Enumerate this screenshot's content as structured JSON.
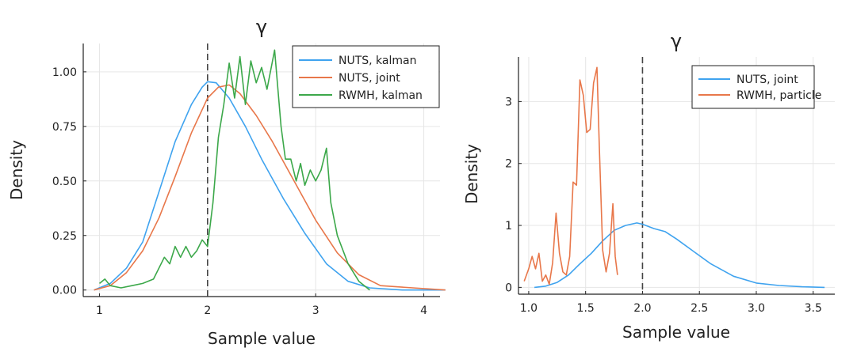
{
  "chart_data": [
    {
      "type": "line",
      "title": "γ",
      "xlabel": "Sample value",
      "ylabel": "Density",
      "xlim": [
        0.85,
        4.15
      ],
      "ylim": [
        -0.03,
        1.13
      ],
      "xticks": [
        "1",
        "2",
        "3",
        "4"
      ],
      "xtick_values": [
        1,
        2,
        3,
        4
      ],
      "yticks": [
        "0.00",
        "0.25",
        "0.50",
        "0.75",
        "1.00"
      ],
      "ytick_values": [
        0,
        0.25,
        0.5,
        0.75,
        1.0
      ],
      "grid": true,
      "legend_position": "top-right",
      "reference_line_x": 2,
      "series": [
        {
          "name": "NUTS, kalman",
          "color": "#3fa3ef",
          "x": [
            0.95,
            1.1,
            1.25,
            1.4,
            1.55,
            1.7,
            1.85,
            1.95,
            2.0,
            2.08,
            2.2,
            2.35,
            2.5,
            2.7,
            2.9,
            3.1,
            3.3,
            3.5,
            3.8,
            4.2
          ],
          "y": [
            0.0,
            0.03,
            0.1,
            0.22,
            0.45,
            0.68,
            0.85,
            0.93,
            0.955,
            0.95,
            0.88,
            0.75,
            0.6,
            0.42,
            0.26,
            0.12,
            0.04,
            0.01,
            0.0,
            0.0
          ]
        },
        {
          "name": "NUTS, joint",
          "color": "#e8774a",
          "x": [
            0.95,
            1.1,
            1.25,
            1.4,
            1.55,
            1.7,
            1.85,
            2.0,
            2.1,
            2.2,
            2.3,
            2.45,
            2.6,
            2.8,
            3.0,
            3.2,
            3.4,
            3.6,
            3.9,
            4.2
          ],
          "y": [
            0.0,
            0.02,
            0.08,
            0.18,
            0.33,
            0.52,
            0.72,
            0.88,
            0.93,
            0.94,
            0.9,
            0.8,
            0.68,
            0.5,
            0.32,
            0.17,
            0.07,
            0.02,
            0.01,
            0.0
          ],
          "_": "x,y"
        },
        {
          "name": "RWMH, kalman",
          "color": "#3ca84a",
          "x": [
            1.0,
            1.05,
            1.1,
            1.2,
            1.3,
            1.4,
            1.5,
            1.6,
            1.65,
            1.7,
            1.75,
            1.8,
            1.85,
            1.9,
            1.95,
            2.0,
            2.05,
            2.1,
            2.15,
            2.2,
            2.25,
            2.3,
            2.35,
            2.4,
            2.45,
            2.5,
            2.55,
            2.62,
            2.68,
            2.72,
            2.77,
            2.82,
            2.86,
            2.9,
            2.95,
            3.0,
            3.05,
            3.1,
            3.14,
            3.2,
            3.3,
            3.4,
            3.5
          ],
          "y": [
            0.03,
            0.05,
            0.02,
            0.01,
            0.02,
            0.03,
            0.05,
            0.15,
            0.12,
            0.2,
            0.15,
            0.2,
            0.15,
            0.18,
            0.23,
            0.2,
            0.4,
            0.7,
            0.85,
            1.04,
            0.88,
            1.07,
            0.85,
            1.05,
            0.95,
            1.02,
            0.92,
            1.1,
            0.75,
            0.6,
            0.6,
            0.5,
            0.58,
            0.48,
            0.55,
            0.5,
            0.55,
            0.65,
            0.4,
            0.25,
            0.12,
            0.04,
            0.0
          ]
        }
      ]
    },
    {
      "type": "line",
      "title": "γ",
      "xlabel": "Sample value",
      "ylabel": "Density",
      "xlim": [
        0.91,
        3.69
      ],
      "ylim": [
        -0.11,
        3.72
      ],
      "xticks": [
        "1.0",
        "1.5",
        "2.0",
        "2.5",
        "3.0",
        "3.5"
      ],
      "xtick_values": [
        1.0,
        1.5,
        2.0,
        2.5,
        3.0,
        3.5
      ],
      "yticks": [
        "0",
        "1",
        "2",
        "3"
      ],
      "ytick_values": [
        0,
        1,
        2,
        3
      ],
      "grid": true,
      "legend_position": "top-right",
      "reference_line_x": 2,
      "series": [
        {
          "name": "NUTS, joint",
          "color": "#3fa3ef",
          "x": [
            1.05,
            1.15,
            1.25,
            1.35,
            1.45,
            1.55,
            1.65,
            1.75,
            1.85,
            1.95,
            2.0,
            2.1,
            2.2,
            2.3,
            2.45,
            2.6,
            2.8,
            3.0,
            3.2,
            3.4,
            3.6
          ],
          "y": [
            0.0,
            0.02,
            0.08,
            0.2,
            0.38,
            0.55,
            0.75,
            0.92,
            1.0,
            1.04,
            1.02,
            0.95,
            0.9,
            0.78,
            0.58,
            0.38,
            0.18,
            0.07,
            0.03,
            0.01,
            0.0
          ]
        },
        {
          "name": "RWMH, particle",
          "color": "#e8774a",
          "x": [
            0.96,
            1.0,
            1.03,
            1.06,
            1.09,
            1.12,
            1.15,
            1.18,
            1.21,
            1.24,
            1.27,
            1.3,
            1.33,
            1.36,
            1.39,
            1.42,
            1.45,
            1.48,
            1.51,
            1.54,
            1.57,
            1.6,
            1.62,
            1.65,
            1.68,
            1.71,
            1.74,
            1.76,
            1.78
          ],
          "y": [
            0.1,
            0.3,
            0.5,
            0.3,
            0.55,
            0.1,
            0.2,
            0.05,
            0.4,
            1.2,
            0.55,
            0.25,
            0.2,
            0.5,
            1.7,
            1.65,
            3.35,
            3.1,
            2.5,
            2.55,
            3.3,
            3.55,
            2.3,
            0.6,
            0.25,
            0.55,
            1.35,
            0.5,
            0.2
          ]
        }
      ]
    }
  ]
}
